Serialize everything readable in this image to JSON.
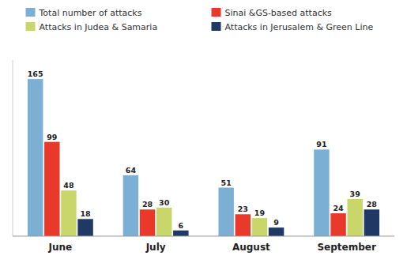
{
  "chart_data": {
    "type": "bar",
    "categories": [
      "June",
      "July",
      "August",
      "September"
    ],
    "series": [
      {
        "name": "Total number of attacks",
        "color": "#7BAFD4",
        "values": [
          165,
          64,
          51,
          91
        ]
      },
      {
        "name": "Sinai &GS-based attacks",
        "color": "#E8392A",
        "values": [
          99,
          28,
          23,
          24
        ]
      },
      {
        "name": "Attacks in Judea & Samaria",
        "color": "#C8D66A",
        "values": [
          48,
          30,
          19,
          39
        ]
      },
      {
        "name": "Attacks in Jerusalem & Green Line",
        "color": "#1F3864",
        "values": [
          18,
          6,
          9,
          28
        ]
      }
    ],
    "ylim": [
      0,
      185
    ],
    "data_labels": true,
    "tick_labels": "x",
    "grid": false,
    "legend": "top"
  }
}
